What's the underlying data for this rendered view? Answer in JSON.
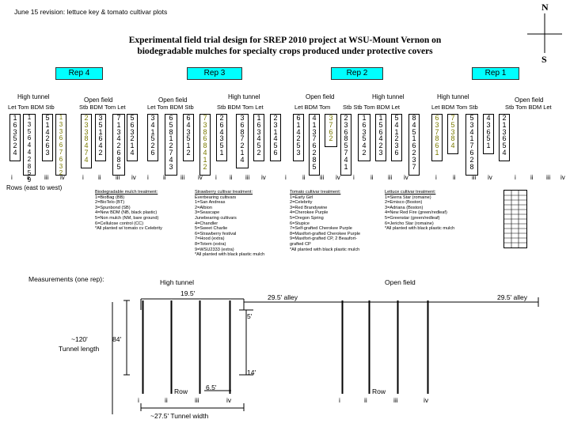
{
  "revision": "June 15 revision: lettuce key & tomato cultivar plots",
  "title_line1": "Experimental field trial design for SREP 2010 project at WSU-Mount Vernon on",
  "title_line2": "biodegradable mulches for specialty crops produced under protective covers",
  "compass": {
    "north": "N",
    "south": "S"
  },
  "reps": [
    "Rep 4",
    "Rep 3",
    "Rep 2",
    "Rep 1"
  ],
  "field_labels": {
    "r4_ht": "High tunnel",
    "r4_of": "Open field",
    "r3_of": "Open field",
    "r3_ht": "High tunnel",
    "r2_of": "Open field",
    "r2_ht": "High tunnel",
    "r1_ht": "High tunnel",
    "r1_of": "Open field"
  },
  "bed_headers": {
    "r4_ht": "Let  Tom  BDM  Stb",
    "r4_of": "Stb  BDM  Tom  Let",
    "r3_of": "Let  Tom  BDM  Stb",
    "r3_ht": "Stb  BDM  Tom  Let",
    "r2_of": "Let  BDM  Tom",
    "r2_ht": "Stb  Stb  Tom  BDM  Let",
    "r1_ht": "Let  BDM  Tom   Stb",
    "r1_of": "Stb  Tom  BDM  Let"
  },
  "columns": [
    {
      "values": [
        "1",
        "6",
        "3",
        "5",
        "2",
        "4"
      ],
      "color": "#000000"
    },
    {
      "values": [
        "1",
        "3",
        "5",
        "6",
        "4",
        "4",
        "2",
        "8",
        "5",
        "9"
      ],
      "color": "#000000"
    },
    {
      "values": [
        "5",
        "1",
        "4",
        "2",
        "6",
        "3"
      ],
      "color": "#000000"
    },
    {
      "values": [
        "1",
        "3",
        "3",
        "6",
        "6",
        "7",
        "6",
        "3",
        "2"
      ],
      "color": "#7a7a00"
    },
    {
      "values": [
        "2",
        "3",
        "3",
        "8",
        "4",
        "7",
        "4"
      ],
      "color": "#7a7a00"
    },
    {
      "values": [
        "3",
        "5",
        "1",
        "6",
        "4",
        "2"
      ],
      "color": "#000000"
    },
    {
      "values": [
        "7",
        "1",
        "3",
        "4",
        "2",
        "6",
        "8",
        "5"
      ],
      "color": "#000000"
    },
    {
      "values": [
        "5",
        "6",
        "3",
        "2",
        "1",
        "4"
      ],
      "color": "#000000"
    },
    {
      "values": [
        "3",
        "4",
        "1",
        "5",
        "2",
        "6"
      ],
      "color": "#000000"
    },
    {
      "values": [
        "6",
        "5",
        "8",
        "1",
        "2",
        "7",
        "4",
        "3"
      ],
      "color": "#000000"
    },
    {
      "values": [
        "6",
        "4",
        "3",
        "5",
        "1",
        "2"
      ],
      "color": "#000000"
    },
    {
      "values": [
        "7",
        "3",
        "8",
        "6",
        "8",
        "4",
        "1",
        "2"
      ],
      "color": "#7a7a00"
    },
    {
      "values": [
        "2",
        "6",
        "4",
        "3",
        "5",
        "1"
      ],
      "color": "#000000"
    },
    {
      "values": [
        "3",
        "6",
        "8",
        "7",
        "2",
        "1",
        "4"
      ],
      "color": "#000000"
    },
    {
      "values": [
        "1",
        "6",
        "3",
        "4",
        "5",
        "2"
      ],
      "color": "#000000"
    },
    {
      "values": [
        "2",
        "3",
        "1",
        "4",
        "5",
        "6"
      ],
      "color": "#000000"
    },
    {
      "values": [
        "6",
        "1",
        "4",
        "2",
        "5",
        "3"
      ],
      "color": "#000000"
    },
    {
      "values": [
        "4",
        "1",
        "3",
        "7",
        "6",
        "2",
        "8",
        "5"
      ],
      "color": "#000000"
    },
    {
      "values": [
        "3",
        "7",
        "6",
        "2"
      ],
      "color": "#7a7a00"
    },
    {
      "values": [
        "2",
        "3",
        "6",
        "8",
        "5",
        "7",
        "4",
        "1"
      ],
      "color": "#000000"
    },
    {
      "values": [
        "1",
        "6",
        "3",
        "5",
        "4",
        "2"
      ],
      "color": "#000000"
    },
    {
      "values": [
        "1",
        "5",
        "6",
        "4",
        "2",
        "3"
      ],
      "color": "#000000"
    },
    {
      "values": [
        "5",
        "4",
        "1",
        "2",
        "3",
        "6"
      ],
      "color": "#000000"
    },
    {
      "values": [
        "8",
        "4",
        "5",
        "1",
        "6",
        "2",
        "3",
        "7"
      ],
      "color": "#000000"
    },
    {
      "values": [
        "6",
        "3",
        "7",
        "8",
        "6",
        "1"
      ],
      "color": "#7a7a00"
    },
    {
      "values": [
        "7",
        "5",
        "3",
        "8",
        "4"
      ],
      "color": "#7a7a00"
    },
    {
      "values": [
        "5",
        "3",
        "4",
        "1",
        "7",
        "6",
        "2",
        "8"
      ],
      "color": "#000000"
    },
    {
      "values": [
        "4",
        "3",
        "6",
        "5",
        "1"
      ],
      "color": "#000000"
    },
    {
      "values": [
        "2",
        "1",
        "3",
        "6",
        "5",
        "4"
      ],
      "color": "#000000"
    }
  ],
  "row_numerals": [
    "i",
    "ii",
    "iii",
    "iv",
    "i",
    "ii",
    "iii",
    "iv",
    "i",
    "ii",
    "iii",
    "iv",
    "i",
    "ii",
    "iii",
    "iv",
    "i",
    "ii",
    "iii",
    "iv",
    "i",
    "ii",
    "iii",
    "iv",
    "i",
    "ii",
    "iii",
    "iv",
    "i",
    "ii",
    "iii",
    "iv"
  ],
  "rows_note": "Rows (east to west)",
  "legends": {
    "mulch": {
      "title": "Biodegradable mulch treatment:",
      "lines": [
        "1=BioBag (BB)",
        "2=BioTelo (BT)",
        "3=Spunbond (SB)",
        "4=New BDM (NB, black plastic)",
        "5=Non mulch (NM, bare ground)",
        "6=Cellulose control (CC)",
        "*All planted w/ tomato cv Celebrity"
      ]
    },
    "strawberry": {
      "title": "Strawberry cultivar treatment:",
      "lines": [
        "Everbearing cultivars",
        "1=San Andreas",
        "2=Albion",
        "3=Seascape",
        "Junebearing cultivars",
        "4=Chandler",
        "5=Sweet Charlie",
        "6=Strawberry festival",
        "7=Hood (extra)",
        "8=Totem (extra)",
        "9=WSU2333 (extra)",
        "*All planted with black plastic mulch"
      ]
    },
    "tomato": {
      "title": "Tomato cultivar treatment:",
      "lines": [
        "1=Early Girl",
        "2=Celebrity",
        "3=Red Brandywine",
        "4=Cherokee Purple",
        "5=Oregon Spring",
        "6=Stupice",
        "7=Self-grafted Cherokee Purple",
        "8=Maxifort-grafted Cherokee Purple",
        "9=Maxifort-grafted CP, 2 Beaufort-",
        "grafted CP",
        "*All planted with black plastic mulch"
      ]
    },
    "lettuce": {
      "title": "Lettuce cultivar treatment:",
      "lines": [
        "1=Sierra Star (romaine)",
        "2=Emisco (Boston)",
        "3=Adriana (Boston)",
        "4=New Red Fire (green/redleaf)",
        "5=Greenstar (green/redleaf)",
        "6=Jericho Star (romaine)",
        "*All planted with black plastic mulch"
      ]
    }
  },
  "measurements": {
    "heading": "Measurements (one rep):",
    "high_tunnel": "High tunnel",
    "open_field": "Open field",
    "ht_width": "19.5'",
    "alley_left": "29.5' alley",
    "alley_right": "29.5' alley",
    "five": "5'",
    "tunnel_len_1": "~120'",
    "tunnel_len_2": "Tunnel length",
    "eightyfour": "84'",
    "fourteen": "14'",
    "row_label_left": "Row",
    "row_label_right": "Row",
    "six_five": "6.5'",
    "tunnel_width": "~27.5' Tunnel width",
    "numerals_left": [
      "i",
      "ii",
      "iii",
      "iv"
    ],
    "numerals_right": [
      "i",
      "ii",
      "iii",
      "iv"
    ]
  }
}
